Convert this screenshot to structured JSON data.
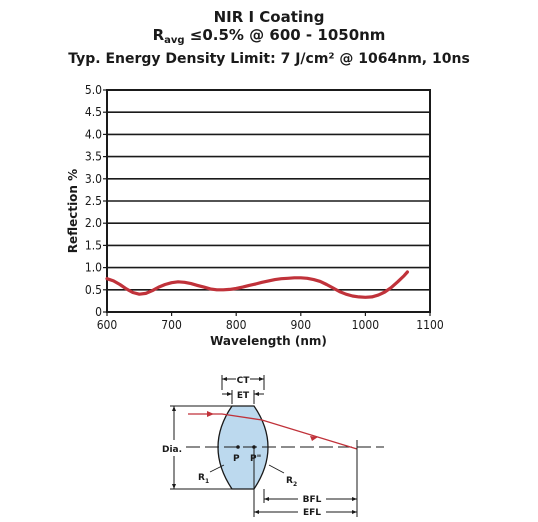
{
  "header": {
    "title": "NIR I Coating",
    "subtitle_prefix": "R",
    "subtitle_sub": "avg",
    "subtitle_rest": " ≤0.5% @ 600 - 1050nm",
    "subtitle2": "Typ. Energy Density Limit: 7 J/cm² @ 1064nm, 10ns"
  },
  "chart_data": {
    "type": "line",
    "title": "NIR I Coating",
    "xlabel": "Wavelength (nm)",
    "ylabel": "Reflection %",
    "xlim": [
      600,
      1100
    ],
    "ylim": [
      0,
      5
    ],
    "x_ticks": [
      "600",
      "700",
      "800",
      "900",
      "1000",
      "1100"
    ],
    "y_ticks": [
      "0",
      "0.5",
      "1.0",
      "1.5",
      "2.0",
      "2.5",
      "3.0",
      "3.5",
      "4.0",
      "4.5",
      "5.0"
    ],
    "grid": true,
    "line_color": "#c0323a",
    "series": [
      {
        "x": [
          600,
          610,
          620,
          630,
          640,
          650,
          660,
          670,
          680,
          690,
          700,
          710,
          720,
          730,
          740,
          750,
          760,
          770,
          780,
          790,
          800,
          810,
          820,
          830,
          840,
          850,
          860,
          870,
          880,
          890,
          900,
          910,
          920,
          930,
          940,
          950,
          960,
          970,
          980,
          990,
          1000,
          1010,
          1020,
          1030,
          1040,
          1050,
          1060,
          1065
        ],
        "y": [
          0.75,
          0.7,
          0.62,
          0.52,
          0.44,
          0.4,
          0.42,
          0.48,
          0.56,
          0.62,
          0.66,
          0.68,
          0.67,
          0.64,
          0.6,
          0.56,
          0.52,
          0.5,
          0.5,
          0.51,
          0.53,
          0.56,
          0.6,
          0.63,
          0.67,
          0.7,
          0.73,
          0.75,
          0.76,
          0.77,
          0.77,
          0.76,
          0.73,
          0.69,
          0.62,
          0.54,
          0.46,
          0.4,
          0.36,
          0.34,
          0.33,
          0.34,
          0.38,
          0.45,
          0.55,
          0.68,
          0.82,
          0.9
        ]
      }
    ]
  },
  "diagram": {
    "labels": {
      "ct": "CT",
      "et": "ET",
      "dia": "Dia.",
      "p": "P",
      "p_prime": "P\"",
      "r1": "R",
      "r1_sub": "1",
      "r2": "R",
      "r2_sub": "2",
      "bfl": "BFL",
      "efl": "EFL"
    },
    "colors": {
      "lens_fill": "#bcd9ee",
      "lens_stroke": "#1a1a1a",
      "ray": "#c0323a"
    }
  }
}
